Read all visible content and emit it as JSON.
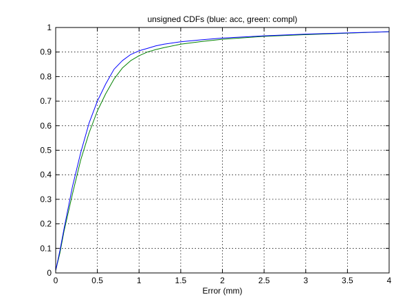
{
  "chart_data": {
    "type": "line",
    "title": "unsigned CDFs (blue: acc, green: compl)",
    "xlabel": "Error (mm)",
    "ylabel": "",
    "xlim": [
      0,
      4
    ],
    "ylim": [
      0,
      1
    ],
    "xticks": [
      0,
      0.5,
      1,
      1.5,
      2,
      2.5,
      3,
      3.5,
      4
    ],
    "xtick_labels": [
      "0",
      "0.5",
      "1",
      "1.5",
      "2",
      "2.5",
      "3",
      "3.5",
      "4"
    ],
    "yticks": [
      0,
      0.1,
      0.2,
      0.3,
      0.4,
      0.5,
      0.6,
      0.7,
      0.8,
      0.9,
      1
    ],
    "ytick_labels": [
      "0",
      "0.1",
      "0.2",
      "0.3",
      "0.4",
      "0.5",
      "0.6",
      "0.7",
      "0.8",
      "0.9",
      "1"
    ],
    "grid": true,
    "series": [
      {
        "color": "#0000ff",
        "x": [
          0,
          0.05,
          0.1,
          0.2,
          0.3,
          0.4,
          0.5,
          0.6,
          0.7,
          0.8,
          0.9,
          1.0,
          1.1,
          1.2,
          1.3,
          1.5,
          1.75,
          2.0,
          2.5,
          3.0,
          3.5,
          4.0
        ],
        "y": [
          0.01,
          0.09,
          0.18,
          0.35,
          0.49,
          0.61,
          0.7,
          0.77,
          0.83,
          0.865,
          0.89,
          0.905,
          0.915,
          0.925,
          0.932,
          0.942,
          0.95,
          0.957,
          0.966,
          0.973,
          0.978,
          0.983
        ]
      },
      {
        "color": "#008000",
        "x": [
          0,
          0.05,
          0.1,
          0.2,
          0.3,
          0.4,
          0.5,
          0.6,
          0.7,
          0.8,
          0.9,
          1.0,
          1.1,
          1.2,
          1.3,
          1.5,
          1.75,
          2.0,
          2.5,
          3.0,
          3.5,
          4.0
        ],
        "y": [
          0.01,
          0.08,
          0.17,
          0.32,
          0.46,
          0.57,
          0.66,
          0.73,
          0.79,
          0.835,
          0.865,
          0.885,
          0.9,
          0.91,
          0.918,
          0.932,
          0.943,
          0.952,
          0.964,
          0.971,
          0.977,
          0.983
        ]
      }
    ]
  }
}
